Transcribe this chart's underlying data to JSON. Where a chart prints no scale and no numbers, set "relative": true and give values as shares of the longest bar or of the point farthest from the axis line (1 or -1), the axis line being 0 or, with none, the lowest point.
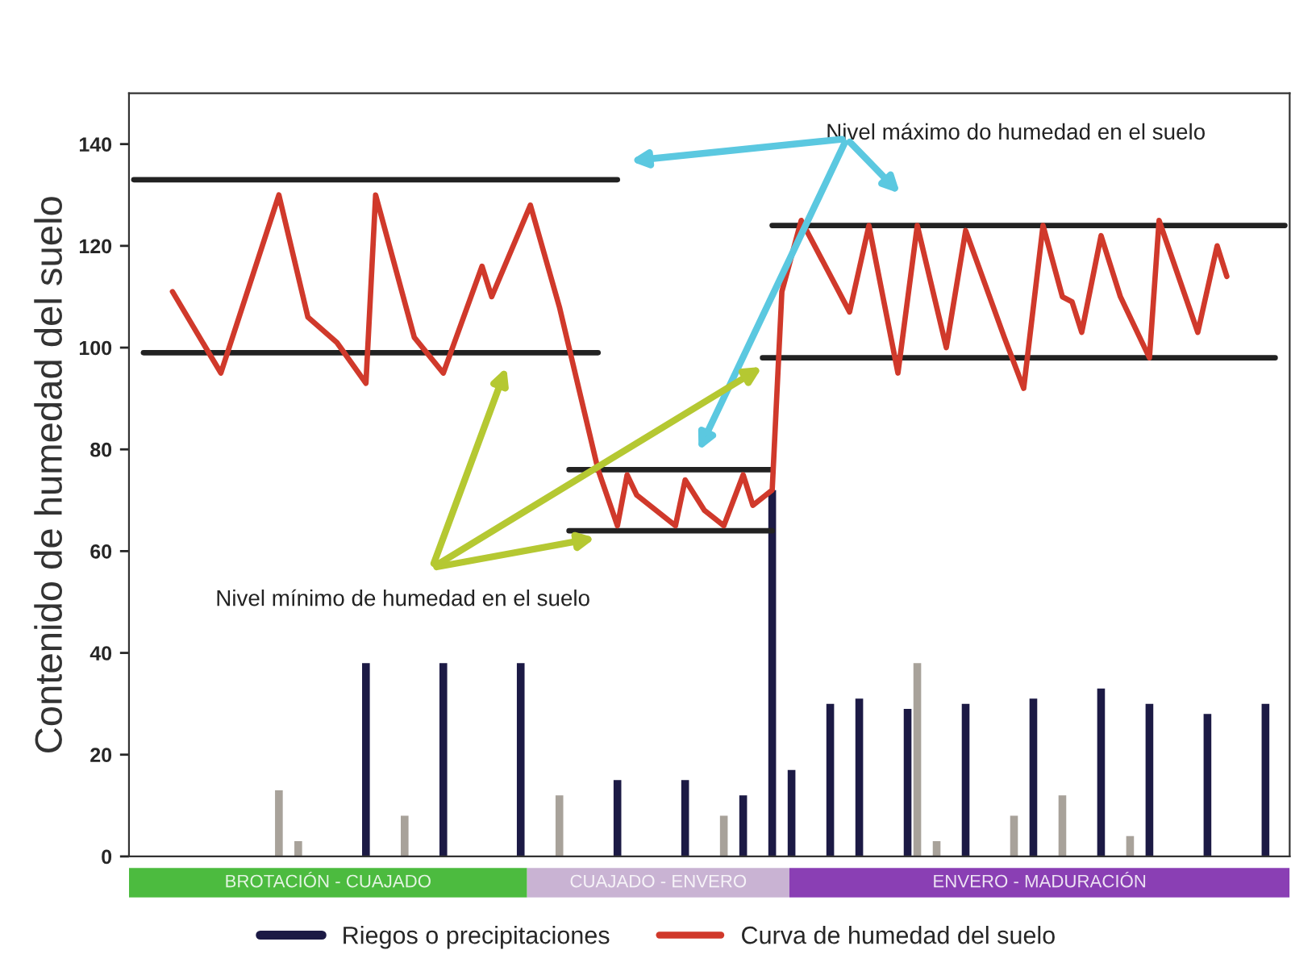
{
  "chart_data": [
    {
      "type": "bar",
      "ylabel": "Contenido de humedad del suelo",
      "ylim": [
        0,
        150
      ],
      "yticks": [
        0,
        20,
        40,
        60,
        80,
        100,
        120,
        140
      ],
      "tick_labels": "y",
      "legend": "bottom",
      "annotations": [
        "Nivel máximo do humedad en el suelo",
        "Nivel mínimo de humedad en el suelo"
      ],
      "categories": [
        null,
        null,
        null,
        null,
        null,
        null,
        null,
        null,
        null,
        null,
        null,
        null,
        null,
        null,
        null,
        null,
        null,
        null,
        null,
        null,
        null,
        null,
        null,
        null,
        null,
        null,
        null,
        null,
        null,
        null,
        null,
        null,
        null,
        null,
        null,
        null,
        null,
        null,
        null,
        null,
        null,
        null,
        null,
        null,
        null,
        null,
        null,
        null,
        null,
        null,
        null,
        null,
        null,
        null,
        null,
        null,
        null,
        null,
        null,
        null,
        null,
        null,
        null,
        null,
        null,
        null,
        null,
        null,
        null,
        null,
        null,
        null,
        null,
        null,
        null,
        null,
        null,
        null,
        null,
        null,
        null,
        null,
        null,
        null,
        null,
        null,
        null,
        null,
        null,
        null,
        null,
        null,
        null,
        null,
        null,
        null,
        null,
        null,
        null,
        null,
        null,
        null,
        null,
        null,
        null,
        null,
        null,
        null,
        null,
        null,
        null,
        null,
        null,
        null,
        null,
        null,
        null,
        null,
        null,
        null
      ],
      "series": [
        {
          "type": "bar",
          "color": "#a8a29a",
          "values": [
            null,
            null,
            null,
            null,
            null,
            null,
            null,
            null,
            null,
            null,
            null,
            null,
            null,
            null,
            null,
            13,
            null,
            3,
            null,
            null,
            null,
            null,
            null,
            null,
            null,
            null,
            null,
            null,
            8,
            null,
            null,
            null,
            null,
            null,
            null,
            null,
            null,
            null,
            null,
            null,
            null,
            null,
            null,
            null,
            12,
            null,
            null,
            null,
            null,
            null,
            null,
            null,
            null,
            null,
            null,
            null,
            null,
            null,
            null,
            null,
            null,
            8,
            null,
            null,
            null,
            null,
            null,
            null,
            null,
            null,
            null,
            null,
            null,
            null,
            null,
            null,
            null,
            null,
            null,
            null,
            null,
            38,
            null,
            3,
            null,
            null,
            null,
            null,
            null,
            null,
            null,
            8,
            null,
            null,
            null,
            null,
            12,
            null,
            null,
            null,
            null,
            null,
            null,
            4,
            null,
            null,
            null,
            null,
            null,
            null,
            null,
            null,
            null,
            null,
            null,
            null,
            null,
            null,
            null,
            null
          ]
        },
        {
          "type": "bar",
          "name": "Riegos o precipitaciones",
          "color": "#1c1a45",
          "values": [
            null,
            null,
            null,
            null,
            null,
            null,
            null,
            null,
            null,
            null,
            null,
            null,
            null,
            null,
            null,
            null,
            null,
            null,
            null,
            null,
            null,
            null,
            null,
            null,
            38,
            null,
            null,
            null,
            null,
            null,
            null,
            null,
            38,
            null,
            null,
            null,
            null,
            null,
            null,
            null,
            38,
            null,
            null,
            null,
            null,
            null,
            null,
            null,
            null,
            null,
            15,
            null,
            null,
            null,
            null,
            null,
            null,
            15,
            null,
            null,
            null,
            null,
            null,
            12,
            null,
            null,
            72,
            null,
            17,
            null,
            null,
            null,
            30,
            null,
            null,
            31,
            null,
            null,
            null,
            null,
            29,
            null,
            null,
            null,
            null,
            null,
            30,
            null,
            null,
            null,
            null,
            null,
            null,
            31,
            null,
            null,
            null,
            null,
            null,
            null,
            33,
            null,
            null,
            null,
            null,
            30,
            null,
            null,
            null,
            null,
            null,
            28,
            null,
            null,
            null,
            null,
            null,
            30,
            null,
            null
          ]
        },
        {
          "type": "line",
          "color": "#222222",
          "values": [
            133,
            133,
            133,
            133,
            133,
            133,
            133,
            133,
            133,
            133,
            133,
            133,
            133,
            133,
            133,
            133,
            133,
            133,
            133,
            133,
            133,
            133,
            133,
            133,
            133,
            133,
            133,
            133,
            133,
            133,
            133,
            133,
            133,
            133,
            133,
            133,
            133,
            133,
            133,
            133,
            133,
            133,
            133,
            133,
            133,
            133,
            133,
            133,
            133,
            133,
            133,
            null,
            null,
            null,
            null,
            null,
            null,
            null,
            null,
            null,
            null,
            null,
            null,
            null,
            null,
            null,
            null,
            null,
            null,
            null,
            null,
            null,
            null,
            null,
            null,
            null,
            null,
            null,
            null,
            null,
            null,
            null,
            null,
            null,
            null,
            null,
            null,
            null,
            null,
            null,
            null,
            null,
            null,
            null,
            null,
            null,
            null,
            null,
            null,
            null,
            null,
            null,
            null,
            null,
            null,
            null,
            null,
            null,
            null,
            null,
            null,
            null,
            null,
            null,
            null,
            null,
            null,
            null,
            null,
            null
          ]
        },
        {
          "type": "line",
          "color": "#222222",
          "values": [
            null,
            99,
            99,
            99,
            99,
            99,
            99,
            99,
            99,
            99,
            99,
            99,
            99,
            99,
            99,
            99,
            99,
            99,
            99,
            99,
            99,
            99,
            99,
            99,
            99,
            99,
            99,
            99,
            99,
            99,
            99,
            99,
            99,
            99,
            99,
            99,
            99,
            99,
            99,
            99,
            99,
            99,
            99,
            99,
            99,
            99,
            99,
            99,
            99,
            null,
            null,
            null,
            null,
            null,
            null,
            null,
            null,
            null,
            null,
            null,
            null,
            null,
            null,
            null,
            null,
            null,
            null,
            null,
            null,
            null,
            null,
            null,
            null,
            null,
            null,
            null,
            null,
            null,
            null,
            null,
            null,
            null,
            null,
            null,
            null,
            null,
            null,
            null,
            null,
            null,
            null,
            null,
            null,
            null,
            null,
            null,
            null,
            null,
            null,
            null,
            null,
            null,
            null,
            null,
            null,
            null,
            null,
            null,
            null,
            null,
            null,
            null,
            null,
            null,
            null,
            null,
            null,
            null,
            null,
            null
          ]
        },
        {
          "type": "line",
          "color": "#222222",
          "values": [
            null,
            null,
            null,
            null,
            null,
            null,
            null,
            null,
            null,
            null,
            null,
            null,
            null,
            null,
            null,
            null,
            null,
            null,
            null,
            null,
            null,
            null,
            null,
            null,
            null,
            null,
            null,
            null,
            null,
            null,
            null,
            null,
            null,
            null,
            null,
            null,
            null,
            null,
            null,
            null,
            null,
            null,
            null,
            null,
            null,
            76,
            76,
            76,
            76,
            76,
            76,
            76,
            76,
            76,
            76,
            76,
            76,
            76,
            76,
            76,
            76,
            76,
            76,
            76,
            76,
            76,
            76,
            null,
            null,
            null,
            null,
            null,
            null,
            null,
            null,
            null,
            null,
            null,
            null,
            null,
            null,
            null,
            null,
            null,
            null,
            null,
            null,
            null,
            null,
            null,
            null,
            null,
            null,
            null,
            null,
            null,
            null,
            null,
            null,
            null,
            null,
            null,
            null,
            null,
            null,
            null,
            null,
            null,
            null,
            null,
            null,
            null,
            null,
            null,
            null,
            null,
            null,
            null,
            null,
            null
          ]
        },
        {
          "type": "line",
          "color": "#222222",
          "values": [
            null,
            null,
            null,
            null,
            null,
            null,
            null,
            null,
            null,
            null,
            null,
            null,
            null,
            null,
            null,
            null,
            null,
            null,
            null,
            null,
            null,
            null,
            null,
            null,
            null,
            null,
            null,
            null,
            null,
            null,
            null,
            null,
            null,
            null,
            null,
            null,
            null,
            null,
            null,
            null,
            null,
            null,
            null,
            null,
            null,
            64,
            64,
            64,
            64,
            64,
            64,
            64,
            64,
            64,
            64,
            64,
            64,
            64,
            64,
            64,
            64,
            64,
            64,
            64,
            64,
            64,
            64,
            null,
            null,
            null,
            null,
            null,
            null,
            null,
            null,
            null,
            null,
            null,
            null,
            null,
            null,
            null,
            null,
            null,
            null,
            null,
            null,
            null,
            null,
            null,
            null,
            null,
            null,
            null,
            null,
            null,
            null,
            null,
            null,
            null,
            null,
            null,
            null,
            null,
            null,
            null,
            null,
            null,
            null,
            null,
            null,
            null,
            null,
            null,
            null,
            null,
            null,
            null,
            null,
            null
          ]
        },
        {
          "type": "line",
          "color": "#222222",
          "values": [
            null,
            null,
            null,
            null,
            null,
            null,
            null,
            null,
            null,
            null,
            null,
            null,
            null,
            null,
            null,
            null,
            null,
            null,
            null,
            null,
            null,
            null,
            null,
            null,
            null,
            null,
            null,
            null,
            null,
            null,
            null,
            null,
            null,
            null,
            null,
            null,
            null,
            null,
            null,
            null,
            null,
            null,
            null,
            null,
            null,
            null,
            null,
            null,
            null,
            null,
            null,
            null,
            null,
            null,
            null,
            null,
            null,
            null,
            null,
            null,
            null,
            null,
            null,
            null,
            null,
            null,
            124,
            124,
            124,
            124,
            124,
            124,
            124,
            124,
            124,
            124,
            124,
            124,
            124,
            124,
            124,
            124,
            124,
            124,
            124,
            124,
            124,
            124,
            124,
            124,
            124,
            124,
            124,
            124,
            124,
            124,
            124,
            124,
            124,
            124,
            124,
            124,
            124,
            124,
            124,
            124,
            124,
            124,
            124,
            124,
            124,
            124,
            124,
            124,
            124,
            124,
            124,
            124,
            124,
            124
          ]
        },
        {
          "type": "line",
          "color": "#222222",
          "values": [
            null,
            null,
            null,
            null,
            null,
            null,
            null,
            null,
            null,
            null,
            null,
            null,
            null,
            null,
            null,
            null,
            null,
            null,
            null,
            null,
            null,
            null,
            null,
            null,
            null,
            null,
            null,
            null,
            null,
            null,
            null,
            null,
            null,
            null,
            null,
            null,
            null,
            null,
            null,
            null,
            null,
            null,
            null,
            null,
            null,
            null,
            null,
            null,
            null,
            null,
            null,
            null,
            null,
            null,
            null,
            null,
            null,
            null,
            null,
            null,
            null,
            null,
            null,
            null,
            null,
            98,
            98,
            98,
            98,
            98,
            98,
            98,
            98,
            98,
            98,
            98,
            98,
            98,
            98,
            98,
            98,
            98,
            98,
            98,
            98,
            98,
            98,
            98,
            98,
            98,
            98,
            98,
            98,
            98,
            98,
            98,
            98,
            98,
            98,
            98,
            98,
            98,
            98,
            98,
            98,
            98,
            98,
            98,
            98,
            98,
            98,
            98,
            98,
            98,
            98,
            98,
            98,
            98,
            98,
            null
          ]
        },
        {
          "type": "line",
          "name": "Curva de humedad del suelo",
          "color": "#d0392b",
          "values": [
            null,
            null,
            null,
            null,
            111,
            null,
            null,
            null,
            null,
            95,
            null,
            null,
            null,
            null,
            null,
            130,
            null,
            null,
            106,
            null,
            null,
            101,
            null,
            null,
            93,
            130,
            null,
            null,
            null,
            102,
            null,
            null,
            95,
            null,
            null,
            null,
            116,
            110,
            null,
            null,
            null,
            128,
            null,
            null,
            108,
            null,
            null,
            null,
            76,
            null,
            65,
            75,
            71,
            null,
            68,
            null,
            65,
            74,
            null,
            68,
            null,
            65,
            null,
            75,
            69,
            null,
            72,
            111,
            null,
            125,
            null,
            null,
            null,
            null,
            107,
            null,
            124,
            null,
            null,
            95,
            null,
            124,
            null,
            null,
            100,
            null,
            123,
            null,
            null,
            null,
            102,
            null,
            92,
            null,
            124,
            null,
            110,
            109,
            103,
            null,
            122,
            null,
            110,
            null,
            null,
            98,
            125,
            null,
            null,
            null,
            103,
            null,
            120,
            114,
            null,
            null,
            null,
            null,
            null,
            null
          ]
        }
      ]
    },
    {
      "type": "bar",
      "orientation": "horizontal",
      "stacked": true,
      "relative": true,
      "tick_labels": false,
      "categories": [
        null
      ],
      "series": [
        {
          "name": "BROTACIÓN - CUAJADO",
          "color": "#4cbb3f",
          "values": [
            0.343
          ]
        },
        {
          "name": "CUAJADO - ENVERO",
          "color": "#c9b3d3",
          "values": [
            0.226
          ]
        },
        {
          "name": "ENVERO - MADURACIÓN",
          "color": "#8a3fb4",
          "values": [
            0.431
          ]
        }
      ]
    }
  ]
}
